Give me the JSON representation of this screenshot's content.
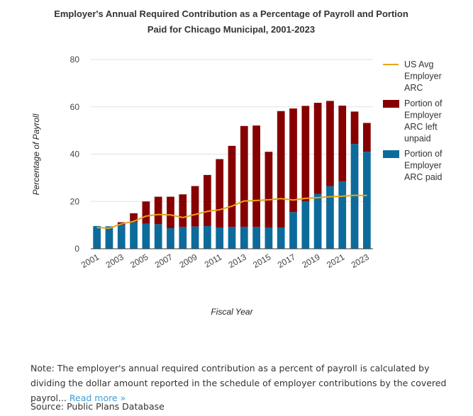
{
  "chart_data": {
    "type": "bar",
    "title_line1": "Employer's Annual Required Contribution as a Percentage of Payroll and Portion",
    "title_line2": "Paid for Chicago Municipal, 2001-2023",
    "xlabel": "Fiscal Year",
    "ylabel": "Percentage of Payroll",
    "ylim": [
      0,
      80
    ],
    "yticks": [
      0,
      20,
      40,
      60,
      80
    ],
    "categories": [
      "2001",
      "2002",
      "2003",
      "2004",
      "2005",
      "2006",
      "2007",
      "2008",
      "2009",
      "2010",
      "2011",
      "2012",
      "2013",
      "2014",
      "2015",
      "2016",
      "2017",
      "2018",
      "2019",
      "2020",
      "2021",
      "2022",
      "2023"
    ],
    "xtick_labels": [
      "2001",
      "2003",
      "2005",
      "2007",
      "2009",
      "2011",
      "2013",
      "2015",
      "2017",
      "2019",
      "2021",
      "2023"
    ],
    "grid": true,
    "legend_position": "right",
    "stacked": true,
    "series": [
      {
        "name": "Portion of Employer ARC paid",
        "legend_lines": [
          "Portion of",
          "Employer",
          "ARC paid"
        ],
        "type": "bar",
        "color": "#0d6b9c",
        "values": [
          9.6,
          9.5,
          10.2,
          11.2,
          10.6,
          10.4,
          8.7,
          9.2,
          9.4,
          9.6,
          9.0,
          9.2,
          9.3,
          9.2,
          9.0,
          9.0,
          15.5,
          20.0,
          23.2,
          26.5,
          28.5,
          44.3,
          41.0
        ]
      },
      {
        "name": "Portion of Employer ARC left unpaid",
        "legend_lines": [
          "Portion of",
          "Employer",
          "ARC left",
          "unpaid"
        ],
        "type": "bar",
        "color": "#870000",
        "values": [
          0.0,
          0.0,
          1.0,
          3.8,
          9.4,
          11.6,
          13.3,
          13.8,
          17.1,
          21.6,
          28.9,
          34.3,
          42.6,
          42.9,
          32.0,
          49.2,
          43.8,
          40.4,
          38.5,
          36.0,
          32.0,
          13.7,
          12.2
        ]
      },
      {
        "name": "US Avg Employer ARC",
        "legend_lines": [
          "US Avg",
          "Employer",
          "ARC"
        ],
        "type": "line",
        "color": "#e8a317",
        "values": [
          9.0,
          8.7,
          10.5,
          11.6,
          13.8,
          14.5,
          14.3,
          13.2,
          14.5,
          15.8,
          16.5,
          18.0,
          20.2,
          20.4,
          20.7,
          21.2,
          20.6,
          21.3,
          21.6,
          22.0,
          22.2,
          22.6,
          22.5
        ]
      }
    ]
  },
  "note": {
    "text": "Note: The employer's annual required contribution as a percent of payroll is calculated by dividing the dollar amount reported in the schedule of employer contributions by the covered payrol...",
    "read_more": "Read more »"
  },
  "source": "Source: Public Plans Database"
}
